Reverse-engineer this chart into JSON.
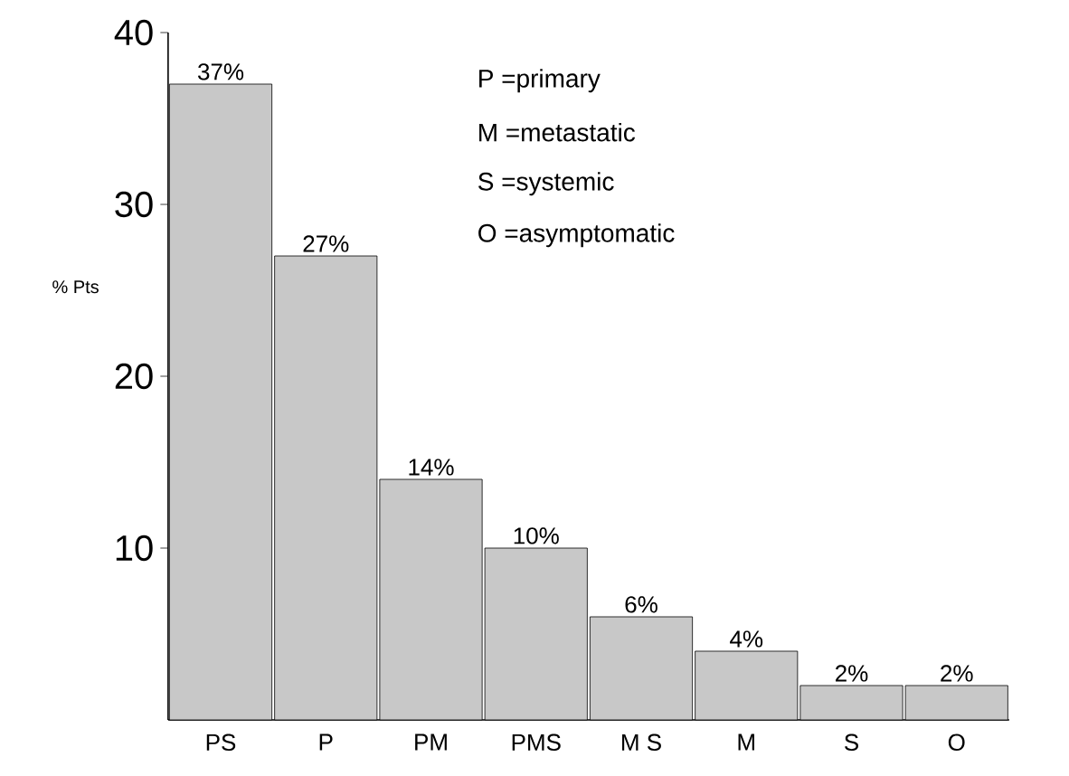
{
  "chart_data": {
    "type": "bar",
    "ylabel": "% Pts",
    "categories": [
      "PS",
      "P",
      "PM",
      "PMS",
      "M S",
      "M",
      "S",
      "O"
    ],
    "values": [
      37,
      27,
      14,
      10,
      6,
      4,
      2,
      2
    ],
    "value_labels": [
      "37%",
      "27%",
      "14%",
      "10%",
      "6%",
      "4%",
      "2%",
      "2%"
    ],
    "color": "#c8c8c8",
    "ylim": [
      0,
      40
    ],
    "yticks": [
      10,
      20,
      30,
      40
    ],
    "annotations": [
      "P =primary",
      "M =metastatic",
      "S =systemic",
      "O =asymptomatic"
    ]
  }
}
